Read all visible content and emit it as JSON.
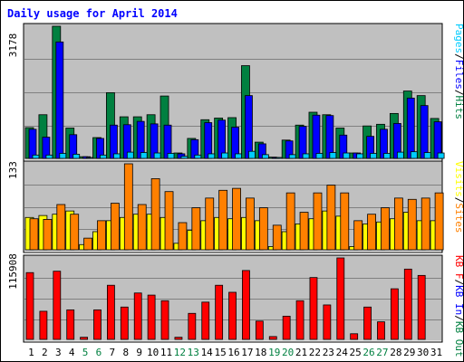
{
  "chart_data": [
    {
      "type": "bar",
      "title": "Daily usage for April 2014",
      "ylabel_max": "3178",
      "ymax": 3178,
      "legend": [
        {
          "text": "Pages",
          "color": "#00CCFF"
        },
        {
          "text": "/",
          "color": "#000000"
        },
        {
          "text": "Files",
          "color": "#0000FF"
        },
        {
          "text": "/",
          "color": "#000000"
        },
        {
          "text": "Hits",
          "color": "#008040"
        }
      ],
      "series": [
        {
          "name": "Hits",
          "color": "#008040",
          "values": [
            740,
            1050,
            3178,
            730,
            40,
            500,
            1580,
            1000,
            1000,
            1050,
            1500,
            130,
            480,
            930,
            970,
            980,
            2230,
            390,
            30,
            440,
            800,
            1110,
            1050,
            730,
            130,
            780,
            820,
            1080,
            1620,
            1510,
            960
          ]
        },
        {
          "name": "Files",
          "color": "#0000FF",
          "values": [
            700,
            510,
            2800,
            570,
            40,
            480,
            800,
            810,
            890,
            830,
            800,
            110,
            450,
            860,
            920,
            750,
            1510,
            350,
            20,
            420,
            770,
            1040,
            1030,
            560,
            130,
            530,
            700,
            840,
            1450,
            1270,
            880
          ]
        },
        {
          "name": "Pages",
          "color": "#00CCFF",
          "values": [
            80,
            80,
            120,
            100,
            20,
            80,
            110,
            150,
            140,
            130,
            120,
            50,
            80,
            110,
            130,
            110,
            170,
            90,
            10,
            90,
            110,
            120,
            140,
            130,
            110,
            120,
            120,
            150,
            160,
            140,
            130
          ]
        }
      ]
    },
    {
      "type": "bar",
      "ylabel_max": "133",
      "ymax": 133,
      "legend": [
        {
          "text": "Visits",
          "color": "#FFFF00"
        },
        {
          "text": "/",
          "color": "#000000"
        },
        {
          "text": "Sites",
          "color": "#FF8000"
        }
      ],
      "series": [
        {
          "name": "Visits",
          "color": "#FFFF00",
          "values": [
            50,
            53,
            55,
            60,
            8,
            28,
            45,
            50,
            55,
            55,
            50,
            10,
            30,
            45,
            50,
            48,
            50,
            45,
            5,
            28,
            40,
            48,
            60,
            52,
            5,
            40,
            43,
            48,
            58,
            45,
            45
          ]
        },
        {
          "name": "Sites",
          "color": "#FF8000",
          "values": [
            48,
            47,
            70,
            55,
            18,
            45,
            72,
            133,
            70,
            110,
            90,
            42,
            65,
            80,
            92,
            95,
            80,
            65,
            38,
            88,
            58,
            88,
            100,
            88,
            45,
            55,
            65,
            80,
            78,
            80,
            88
          ]
        }
      ]
    },
    {
      "type": "bar",
      "ylabel_max": "115908",
      "ymax": 115908,
      "legend": [
        {
          "text": "KB F",
          "color": "#FF0000"
        },
        {
          "text": "/",
          "color": "#000000"
        },
        {
          "text": "KB In",
          "color": "#0000FF"
        },
        {
          "text": "/",
          "color": "#000000"
        },
        {
          "text": "KB Out",
          "color": "#008040"
        }
      ],
      "series": [
        {
          "name": "KB F",
          "color": "#FF0000",
          "values": [
            95000,
            40000,
            97000,
            42000,
            3000,
            42000,
            77000,
            46000,
            66000,
            63000,
            55000,
            3000,
            37000,
            53000,
            77000,
            67000,
            98000,
            26000,
            4000,
            33000,
            55000,
            88000,
            49000,
            115908,
            8000,
            46000,
            25000,
            72000,
            100000,
            91000,
            0
          ]
        }
      ]
    }
  ],
  "x_labels": [
    "1",
    "2",
    "3",
    "4",
    "5",
    "6",
    "7",
    "8",
    "9",
    "10",
    "11",
    "12",
    "13",
    "14",
    "15",
    "16",
    "17",
    "18",
    "19",
    "20",
    "21",
    "22",
    "23",
    "24",
    "25",
    "26",
    "27",
    "28",
    "29",
    "30",
    "31"
  ],
  "weekend_days": [
    5,
    6,
    12,
    13,
    19,
    20,
    26,
    27
  ],
  "weekday_color": "#000000",
  "weekend_color": "#008040"
}
